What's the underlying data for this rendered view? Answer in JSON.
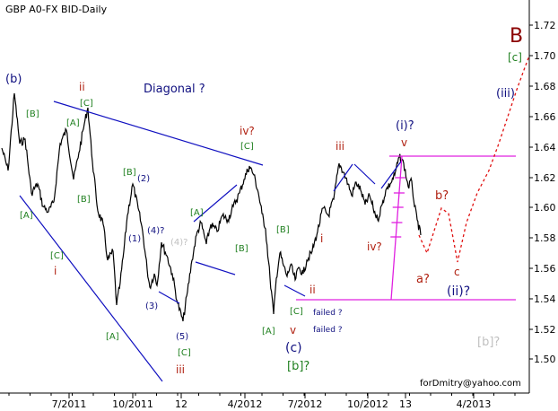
{
  "chart_data": {
    "type": "line",
    "title": "GBP A0-FX BID-Daily",
    "watermark": "forDmitry@yahoo.com",
    "y_ticks": [
      "1.72",
      "1.70",
      "1.68",
      "1.66",
      "1.64",
      "1.62",
      "1.60",
      "1.58",
      "1.56",
      "1.54",
      "1.52",
      "1.50"
    ],
    "x_ticks": [
      "7/2011",
      "10/2011",
      "12",
      "4/2012",
      "7/2012",
      "10/2012",
      "13",
      "4/2013"
    ],
    "ylim": [
      1.48,
      1.73
    ],
    "colors": {
      "price": "#000000",
      "channel": "#1010c0",
      "target": "#e020e0",
      "projection": "#e01010",
      "green_label": "#208020",
      "red_label": "#b02010",
      "blue_label": "#101080",
      "big_b": "#8b0000",
      "gray_label": "#c0c0c0"
    },
    "annotations": {
      "big_b": "B",
      "c_green": "[c]",
      "iii_blue": "(iii)",
      "b_paren": "(b)",
      "ii_top": "ii",
      "diagonal": "Diagonal ?",
      "C1": "[C]",
      "A1": "[A]",
      "B1": "[B]",
      "A2": "[A]",
      "C2": "[C]",
      "i1": "i",
      "B2": "[B]",
      "n2": "(2)",
      "n1": "(1)",
      "n4": "(4)?",
      "n4g": "(4)?",
      "n3": "(3)",
      "n5": "(5)",
      "A3": "[A]",
      "B3": "[B]",
      "C3": "[C]",
      "iii2": "iii",
      "iv_q": "iv?",
      "C4": "[C]",
      "A4": "[A]",
      "B4": "[B]",
      "i2": "i",
      "ii2": "ii",
      "C5": "[C]",
      "failed1": "failed ?",
      "failed2": "failed ?",
      "v1": "v",
      "c_paren": "(c)",
      "b_green": "[b]?",
      "A5": "[A]",
      "iii3": "iii",
      "i_q": "(i)?",
      "v2": "v",
      "iv2": "iv?",
      "b_q": "b?",
      "a_q": "a?",
      "c_small": "c",
      "ii_q": "(ii)?",
      "b_gray": "[b]?"
    }
  }
}
